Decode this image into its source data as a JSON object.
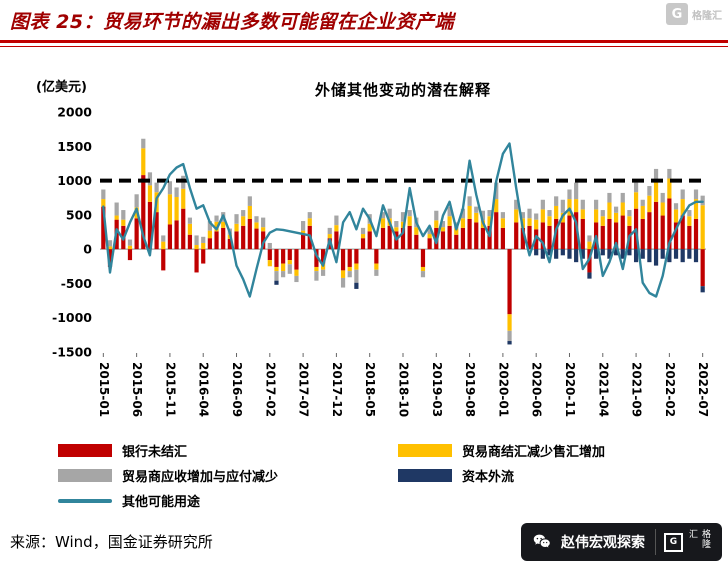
{
  "header": {
    "title": "图表 25：贸易环节的漏出多数可能留在企业资产端"
  },
  "source": {
    "text": "来源：Wind，国金证券研究所"
  },
  "footer_logo": {
    "account_name": "赵伟宏观探索",
    "brand_name": "格隆汇",
    "brand_initial": "G"
  },
  "chart_data": {
    "type": "bar",
    "subtype": "stacked bars with overlaid line",
    "title": "外储其他变动的潜在解释",
    "unit_label": "(亿美元)",
    "ylim": [
      -1500,
      2000
    ],
    "yticks": [
      2000,
      1500,
      1000,
      500,
      0,
      -500,
      -1000,
      -1500
    ],
    "reference_line": 1000,
    "grid": false,
    "legend_position": "bottom",
    "x_tick_labels": [
      "2015-01",
      "2015-06",
      "2015-11",
      "2016-04",
      "2016-09",
      "2017-02",
      "2017-07",
      "2017-12",
      "2018-05",
      "2018-10",
      "2019-03",
      "2019-08",
      "2020-01",
      "2020-06",
      "2020-11",
      "2021-04",
      "2021-09",
      "2022-02",
      "2022-07"
    ],
    "x": [
      "2015-01",
      "2015-02",
      "2015-03",
      "2015-04",
      "2015-05",
      "2015-06",
      "2015-07",
      "2015-08",
      "2015-09",
      "2015-10",
      "2015-11",
      "2015-12",
      "2016-01",
      "2016-02",
      "2016-03",
      "2016-04",
      "2016-05",
      "2016-06",
      "2016-07",
      "2016-08",
      "2016-09",
      "2016-10",
      "2016-11",
      "2016-12",
      "2017-01",
      "2017-02",
      "2017-03",
      "2017-04",
      "2017-05",
      "2017-06",
      "2017-07",
      "2017-08",
      "2017-09",
      "2017-10",
      "2017-11",
      "2017-12",
      "2018-01",
      "2018-02",
      "2018-03",
      "2018-04",
      "2018-05",
      "2018-06",
      "2018-07",
      "2018-08",
      "2018-09",
      "2018-10",
      "2018-11",
      "2018-12",
      "2019-01",
      "2019-02",
      "2019-03",
      "2019-04",
      "2019-05",
      "2019-06",
      "2019-07",
      "2019-08",
      "2019-09",
      "2019-10",
      "2019-11",
      "2019-12",
      "2020-01",
      "2020-02",
      "2020-03",
      "2020-04",
      "2020-05",
      "2020-06",
      "2020-07",
      "2020-08",
      "2020-09",
      "2020-10",
      "2020-11",
      "2020-12",
      "2021-01",
      "2021-02",
      "2021-03",
      "2021-04",
      "2021-05",
      "2021-06",
      "2021-07",
      "2021-08",
      "2021-09",
      "2021-10",
      "2021-11",
      "2021-12",
      "2022-01",
      "2022-02",
      "2022-03",
      "2022-04",
      "2022-05",
      "2022-06",
      "2022-07"
    ],
    "series": [
      {
        "name": "银行未结汇",
        "key": "bank-unsettled-fx",
        "type": "bar",
        "color": "#C00000",
        "values": [
          620,
          -260,
          430,
          340,
          -160,
          450,
          1080,
          690,
          540,
          -310,
          360,
          420,
          590,
          210,
          -340,
          -210,
          160,
          260,
          310,
          150,
          260,
          340,
          440,
          300,
          260,
          -160,
          -260,
          -210,
          -160,
          -300,
          210,
          340,
          -260,
          -210,
          160,
          260,
          -310,
          -260,
          -210,
          160,
          260,
          -210,
          310,
          340,
          260,
          310,
          340,
          210,
          -260,
          160,
          310,
          260,
          340,
          210,
          310,
          440,
          390,
          310,
          340,
          540,
          310,
          -950,
          390,
          310,
          340,
          290,
          390,
          340,
          440,
          390,
          490,
          540,
          440,
          -340,
          390,
          340,
          440,
          390,
          490,
          340,
          590,
          440,
          540,
          690,
          490,
          740,
          390,
          490,
          340,
          440,
          -540
        ]
      },
      {
        "name": "贸易商结汇减少售汇增加",
        "key": "trader-fx-settlement",
        "type": "bar",
        "color": "#FFC000",
        "values": [
          110,
          40,
          60,
          90,
          50,
          160,
          390,
          240,
          290,
          110,
          440,
          340,
          290,
          160,
          60,
          90,
          110,
          140,
          90,
          60,
          110,
          140,
          190,
          90,
          60,
          -90,
          -60,
          -110,
          -60,
          -90,
          60,
          110,
          -60,
          -90,
          60,
          90,
          -110,
          -60,
          -90,
          60,
          110,
          -90,
          140,
          110,
          60,
          90,
          140,
          110,
          -60,
          60,
          110,
          60,
          140,
          90,
          140,
          190,
          140,
          110,
          140,
          190,
          140,
          -240,
          190,
          140,
          110,
          140,
          190,
          140,
          190,
          140,
          240,
          190,
          140,
          110,
          190,
          140,
          240,
          140,
          190,
          140,
          240,
          190,
          240,
          290,
          190,
          290,
          190,
          240,
          140,
          290,
          640
        ]
      },
      {
        "name": "贸易商应收增加与应付减少",
        "key": "trader-receivables-payables",
        "type": "bar",
        "color": "#A6A6A6",
        "values": [
          140,
          90,
          190,
          140,
          90,
          190,
          140,
          190,
          140,
          90,
          190,
          140,
          190,
          90,
          140,
          90,
          140,
          90,
          140,
          90,
          140,
          90,
          140,
          90,
          140,
          90,
          -140,
          -90,
          -140,
          -90,
          140,
          90,
          -140,
          -90,
          90,
          140,
          -140,
          -90,
          -190,
          90,
          140,
          -90,
          90,
          140,
          90,
          140,
          90,
          140,
          -90,
          90,
          140,
          90,
          140,
          90,
          140,
          140,
          90,
          140,
          90,
          240,
          90,
          -150,
          140,
          90,
          140,
          90,
          140,
          90,
          140,
          190,
          140,
          240,
          140,
          90,
          140,
          90,
          140,
          90,
          140,
          90,
          140,
          90,
          140,
          190,
          140,
          140,
          90,
          140,
          90,
          140,
          140
        ]
      },
      {
        "name": "资本外流",
        "key": "capital-outflow",
        "type": "bar",
        "color": "#1F3864",
        "values": [
          0,
          0,
          0,
          0,
          0,
          0,
          0,
          0,
          0,
          0,
          0,
          0,
          0,
          0,
          0,
          0,
          0,
          0,
          0,
          0,
          0,
          0,
          0,
          0,
          0,
          0,
          -60,
          0,
          0,
          0,
          0,
          0,
          0,
          0,
          0,
          0,
          0,
          0,
          -90,
          0,
          0,
          0,
          0,
          0,
          0,
          0,
          0,
          0,
          0,
          0,
          0,
          0,
          0,
          0,
          0,
          0,
          0,
          0,
          0,
          0,
          0,
          -50,
          0,
          0,
          0,
          -90,
          -140,
          -90,
          -140,
          -90,
          -140,
          -190,
          -140,
          -90,
          -140,
          -90,
          -140,
          -90,
          -140,
          -90,
          -190,
          -140,
          -190,
          -240,
          -140,
          -190,
          -140,
          -190,
          -140,
          -190,
          -90
        ]
      },
      {
        "name": "其他可能用途",
        "key": "other-possible-uses",
        "type": "line",
        "color": "#31859C",
        "values": [
          620,
          -340,
          290,
          140,
          390,
          590,
          190,
          -90,
          740,
          890,
          1090,
          1190,
          1240,
          890,
          590,
          640,
          390,
          290,
          490,
          240,
          -240,
          -440,
          -690,
          -290,
          90,
          240,
          290,
          280,
          260,
          240,
          220,
          200,
          -90,
          -240,
          140,
          -190,
          390,
          540,
          290,
          590,
          440,
          190,
          640,
          390,
          140,
          240,
          890,
          390,
          190,
          340,
          90,
          490,
          690,
          290,
          590,
          1290,
          790,
          390,
          190,
          990,
          1390,
          1540,
          890,
          290,
          -90,
          190,
          90,
          -190,
          290,
          490,
          590,
          390,
          -290,
          -140,
          190,
          -390,
          -190,
          90,
          -290,
          190,
          290,
          -490,
          -640,
          -690,
          -390,
          90,
          290,
          490,
          640,
          690,
          690
        ]
      }
    ]
  }
}
